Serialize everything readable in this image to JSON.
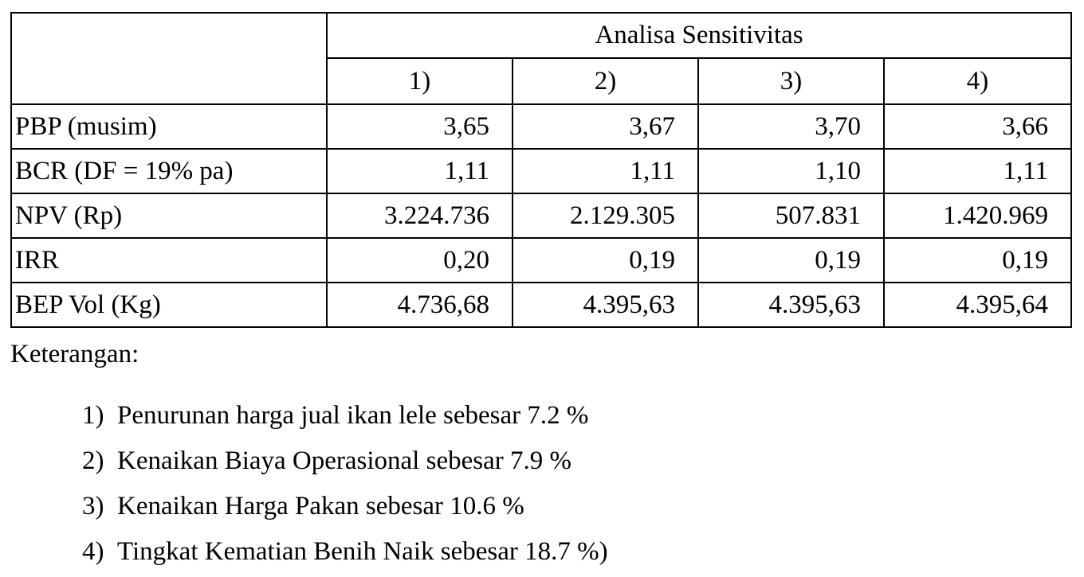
{
  "table": {
    "group_header": "Analisa Sensitivitas",
    "columns": [
      "1)",
      "2)",
      "3)",
      "4)"
    ],
    "rows": [
      {
        "label": "PBP (musim)",
        "values": [
          "3,65",
          "3,67",
          "3,70",
          "3,66"
        ]
      },
      {
        "label": "BCR (DF = 19% pa)",
        "values": [
          "1,11",
          "1,11",
          "1,10",
          "1,11"
        ]
      },
      {
        "label": "NPV (Rp)",
        "values": [
          "3.224.736",
          "2.129.305",
          "507.831",
          "1.420.969"
        ]
      },
      {
        "label": "IRR",
        "values": [
          "0,20",
          "0,19",
          "0,19",
          "0,19"
        ]
      },
      {
        "label": "BEP Vol (Kg)",
        "values": [
          "4.736,68",
          "4.395,63",
          "4.395,63",
          "4.395,64"
        ]
      }
    ]
  },
  "notes": {
    "title": "Keterangan:",
    "items": [
      {
        "marker": "1)",
        "text": "Penurunan harga jual  ikan lele sebesar 7.2 %"
      },
      {
        "marker": "2)",
        "text": "Kenaikan Biaya Operasional sebesar 7.9 %"
      },
      {
        "marker": "3)",
        "text": "Kenaikan Harga Pakan  sebesar 10.6 %"
      },
      {
        "marker": "4)",
        "text": "Tingkat Kematian Benih Naik sebesar 18.7 %)"
      }
    ]
  }
}
